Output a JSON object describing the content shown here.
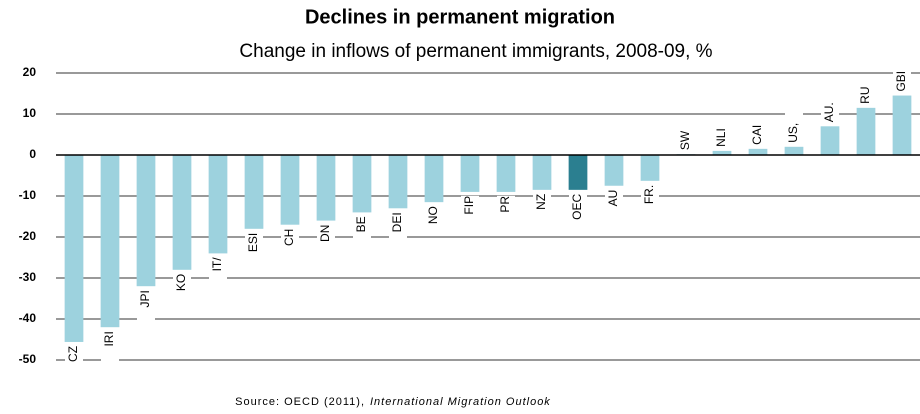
{
  "chart_data": {
    "type": "bar",
    "title": "Declines in permanent migration",
    "subtitle": "Change in inflows of permanent immigrants, 2008-09, %",
    "source": "Source: OECD (2011),",
    "source_title": "International Migration Outlook",
    "categories": [
      "CZ",
      "IRI",
      "JPI",
      "KO",
      "IT/",
      "ESI",
      "CH",
      "DN",
      "BE",
      "DEI",
      "NO",
      "FIP",
      "PR",
      "NZ",
      "OEC",
      "AU",
      "FR.",
      "SW",
      "NLI",
      "CAI",
      "US,",
      "AU.",
      "RU",
      "GBI"
    ],
    "values": [
      -45.6,
      -42,
      -32,
      -28,
      -24,
      -18,
      -17,
      -16,
      -14,
      -13,
      -11.5,
      -9,
      -9,
      -8.5,
      -8.5,
      -7.5,
      -6.3,
      0.2,
      1,
      1.5,
      2,
      7,
      11.5,
      14.5
    ],
    "colors": [
      "#9dd2de",
      "#9dd2de",
      "#9dd2de",
      "#9dd2de",
      "#9dd2de",
      "#9dd2de",
      "#9dd2de",
      "#9dd2de",
      "#9dd2de",
      "#9dd2de",
      "#9dd2de",
      "#9dd2de",
      "#9dd2de",
      "#9dd2de",
      "#2b7f90",
      "#9dd2de",
      "#9dd2de",
      "#9dd2de",
      "#9dd2de",
      "#9dd2de",
      "#9dd2de",
      "#9dd2de",
      "#9dd2de",
      "#9dd2de"
    ],
    "ylim": [
      -50,
      20
    ],
    "yticks": [
      20,
      10,
      0,
      -10,
      -20,
      -30,
      -40,
      -50
    ],
    "grid": true
  }
}
